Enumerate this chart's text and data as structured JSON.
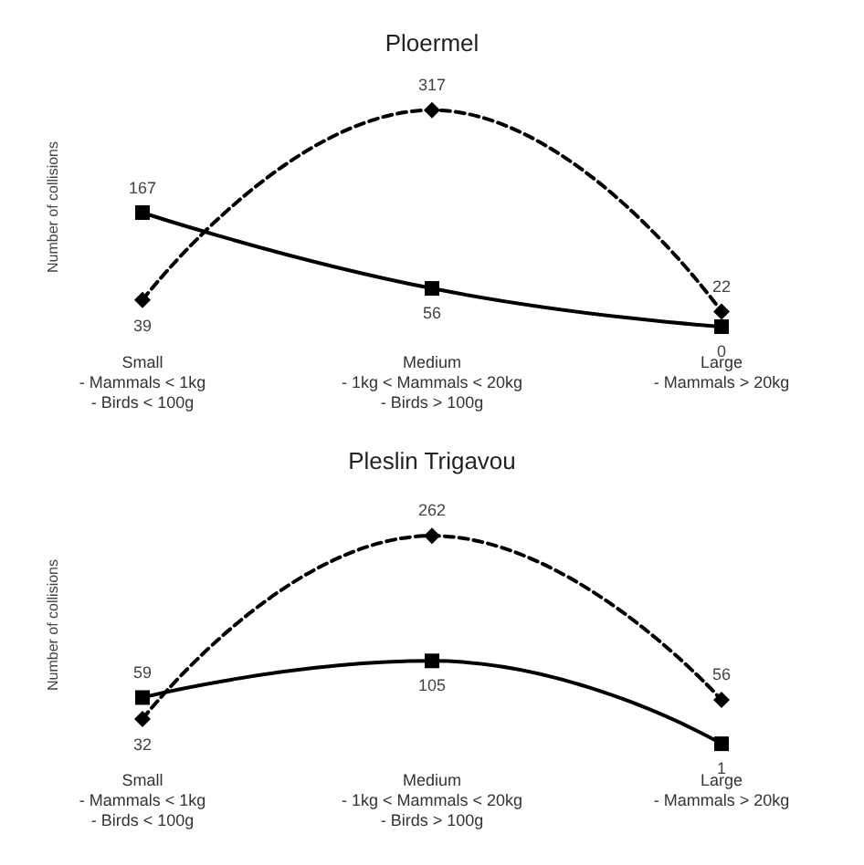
{
  "chart_data": [
    {
      "type": "line",
      "title": "Ploermel",
      "ylabel": "Number of collisions",
      "categories": [
        "Small\n- Mammals < 1kg\n- Birds < 100g",
        "Medium\n- 1kg < Mammals < 20kg\n- Birds > 100g",
        "Large\n- Mammals > 20kg"
      ],
      "series": [
        {
          "color": "#000000",
          "values": [
            167,
            56,
            0
          ],
          "marker": "square",
          "line_style": "solid"
        },
        {
          "color": "#000000",
          "values": [
            39,
            317,
            22
          ],
          "marker": "diamond",
          "line_style": "dashed"
        }
      ],
      "data_labels": true,
      "tick_labels": "x",
      "grid": false
    },
    {
      "type": "line",
      "title": "Pleslin Trigavou",
      "ylabel": "Number of collisions",
      "categories": [
        "Small\n- Mammals < 1kg\n- Birds < 100g",
        "Medium\n- 1kg < Mammals < 20kg\n- Birds > 100g",
        "Large\n- Mammals > 20kg"
      ],
      "series": [
        {
          "color": "#000000",
          "values": [
            59,
            105,
            1
          ],
          "marker": "square",
          "line_style": "solid"
        },
        {
          "color": "#000000",
          "values": [
            32,
            262,
            56
          ],
          "marker": "diamond",
          "line_style": "dashed"
        }
      ],
      "data_labels": true,
      "tick_labels": "x",
      "grid": false
    }
  ]
}
